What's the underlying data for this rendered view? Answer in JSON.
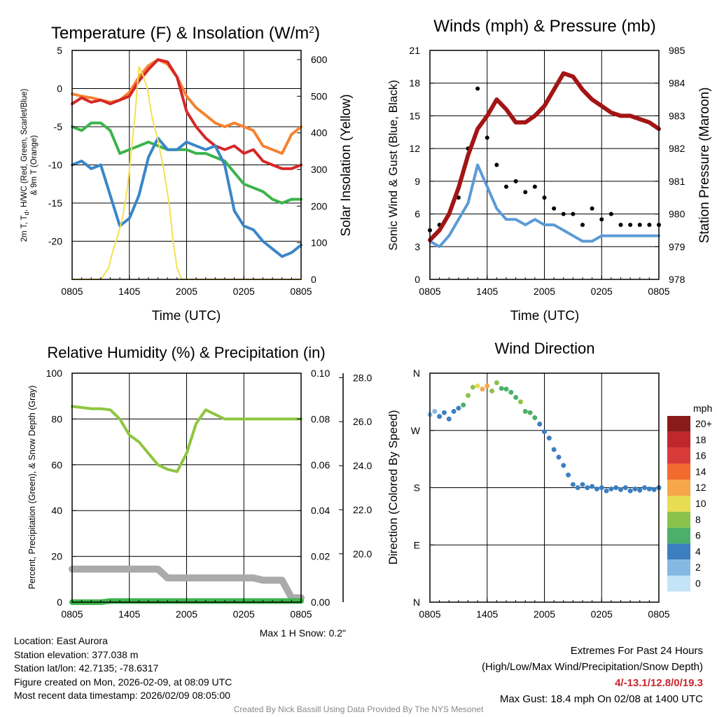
{
  "chart_data": [
    {
      "type": "line",
      "title": "Temperature (F) & Insolation (W/m²)",
      "xlabel": "Time (UTC)",
      "ylabel": "2m T, Td, H/WC (Red, Green, Scarlet/Blue) & 9m T (Orange)",
      "y2label": "Solar Insolation (Yellow)",
      "x_ticks": [
        "0805",
        "1405",
        "2005",
        "0205",
        "0805"
      ],
      "y_ticks": [
        "5",
        "0",
        "-5",
        "-10",
        "-15",
        "-20"
      ],
      "y2_ticks": [
        "600",
        "500",
        "400",
        "300",
        "200",
        "100",
        "0"
      ],
      "ylim": [
        -25,
        5
      ],
      "y2lim": [
        0,
        625
      ],
      "xlim": [
        0,
        24
      ],
      "series": [
        {
          "name": "9m T",
          "color": "#f58231",
          "x": [
            0,
            1,
            2,
            3,
            4,
            5,
            6,
            7,
            8,
            9,
            10,
            11,
            12,
            13,
            14,
            15,
            16,
            17,
            18,
            19,
            20,
            21,
            22,
            23,
            24
          ],
          "values": [
            -0.7,
            -1.0,
            -1.2,
            -1.5,
            -1.8,
            -1.5,
            -0.5,
            1.5,
            3.0,
            3.8,
            3.2,
            1.5,
            -1.0,
            -2.5,
            -3.5,
            -4.5,
            -5.0,
            -4.5,
            -5.0,
            -5.5,
            -7.5,
            -8.0,
            -8.5,
            -6.0,
            -5.0
          ]
        },
        {
          "name": "2m T",
          "color": "#d62728",
          "x": [
            0,
            1,
            2,
            3,
            4,
            5,
            6,
            7,
            8,
            9,
            10,
            11,
            12,
            13,
            14,
            15,
            16,
            17,
            18,
            19,
            20,
            21,
            22,
            23,
            24
          ],
          "values": [
            -2.0,
            -1.2,
            -1.8,
            -1.5,
            -2.0,
            -1.5,
            -1.0,
            1.0,
            2.5,
            3.8,
            3.5,
            1.5,
            -3.0,
            -5.0,
            -6.5,
            -7.5,
            -8.0,
            -7.5,
            -8.5,
            -8.0,
            -9.5,
            -10.0,
            -10.5,
            -10.5,
            -10.0
          ]
        },
        {
          "name": "Td",
          "color": "#3cb44b",
          "x": [
            0,
            1,
            2,
            3,
            4,
            5,
            6,
            7,
            8,
            9,
            10,
            11,
            12,
            13,
            14,
            15,
            16,
            17,
            18,
            19,
            20,
            21,
            22,
            23,
            24
          ],
          "values": [
            -5.0,
            -5.5,
            -4.5,
            -4.5,
            -5.5,
            -8.5,
            -8.0,
            -7.5,
            -7.0,
            -7.5,
            -8.0,
            -8.0,
            -8.0,
            -8.5,
            -8.5,
            -9.0,
            -9.5,
            -11.0,
            -12.5,
            -13.0,
            -13.5,
            -14.5,
            -15.0,
            -14.5,
            -14.5
          ]
        },
        {
          "name": "H/WC",
          "color": "#3a86c8",
          "x": [
            0,
            1,
            2,
            3,
            4,
            5,
            6,
            7,
            8,
            9,
            10,
            11,
            12,
            13,
            14,
            15,
            16,
            17,
            18,
            19,
            20,
            21,
            22,
            23,
            24
          ],
          "values": [
            -10.0,
            -9.5,
            -10.5,
            -10.0,
            -14.0,
            -18.0,
            -17.0,
            -14.0,
            -9.0,
            -6.5,
            -8.0,
            -8.0,
            -7.0,
            -7.5,
            -8.0,
            -7.5,
            -10.0,
            -16.0,
            -18.0,
            -18.5,
            -20.0,
            -21.0,
            -22.0,
            -21.5,
            -20.5
          ]
        },
        {
          "name": "Solar Insolation",
          "color": "#f5e050",
          "axis": "y2",
          "x": [
            0,
            3.0,
            3.8,
            4.3,
            4.8,
            5.3,
            5.8,
            6.2,
            6.6,
            7.0,
            7.4,
            7.9,
            8.4,
            9.0,
            9.6,
            10.2,
            10.6,
            11.0,
            11.5,
            24
          ],
          "values": [
            0,
            0,
            30,
            80,
            120,
            170,
            250,
            350,
            450,
            580,
            560,
            520,
            440,
            380,
            300,
            200,
            100,
            30,
            0,
            0
          ]
        }
      ]
    },
    {
      "type": "line",
      "title": "Winds (mph) & Pressure (mb)",
      "xlabel": "Time (UTC)",
      "ylabel": "Sonic Wind & Gust (Blue, Black)",
      "y2label": "Station Pressure (Maroon)",
      "x_ticks": [
        "0805",
        "1405",
        "2005",
        "0205",
        "0805"
      ],
      "y_ticks": [
        "21",
        "18",
        "15",
        "12",
        "9",
        "6",
        "3",
        "0"
      ],
      "y2_ticks": [
        "985",
        "984",
        "983",
        "982",
        "981",
        "980",
        "979",
        "978"
      ],
      "ylim": [
        0,
        21
      ],
      "y2lim": [
        978,
        985
      ],
      "xlim": [
        0,
        24
      ],
      "series": [
        {
          "name": "Sonic Wind",
          "color": "#5b9bd5",
          "x": [
            0,
            1,
            2,
            3,
            4,
            5,
            6,
            7,
            8,
            9,
            10,
            11,
            12,
            13,
            14,
            15,
            16,
            17,
            18,
            19,
            20,
            21,
            22,
            23,
            24
          ],
          "values": [
            3.5,
            3.0,
            4.0,
            5.5,
            7.0,
            10.5,
            8.5,
            6.5,
            5.5,
            5.5,
            5.0,
            5.5,
            5.0,
            5.0,
            4.5,
            4.0,
            3.5,
            3.5,
            4.0,
            4.0,
            4.0,
            4.0,
            4.0,
            4.0,
            4.0
          ]
        },
        {
          "name": "Gust",
          "color": "#000000",
          "x": [
            0,
            1,
            2,
            3,
            4,
            5,
            6,
            7,
            8,
            9,
            10,
            11,
            12,
            13,
            14,
            15,
            16,
            17,
            18,
            19,
            20,
            21,
            22,
            23,
            24
          ],
          "values": [
            4.5,
            5.0,
            6.0,
            7.5,
            12.0,
            17.5,
            13.0,
            10.5,
            8.5,
            9.0,
            8.0,
            8.5,
            7.5,
            6.5,
            6.0,
            6.0,
            5.0,
            6.5,
            5.5,
            6.0,
            5.0,
            5.0,
            5.0,
            5.0,
            5.0
          ]
        },
        {
          "name": "Station Pressure",
          "color": "#a31515",
          "axis": "y2",
          "x": [
            0,
            1,
            2,
            3,
            4,
            5,
            6,
            7,
            8,
            9,
            10,
            11,
            12,
            13,
            14,
            15,
            16,
            17,
            18,
            19,
            20,
            21,
            22,
            23,
            24
          ],
          "values": [
            979.2,
            979.5,
            980.0,
            980.8,
            981.8,
            982.6,
            983.0,
            983.5,
            983.2,
            982.8,
            982.8,
            983.0,
            983.3,
            983.8,
            984.3,
            984.2,
            983.8,
            983.5,
            983.3,
            983.1,
            983.0,
            983.0,
            982.9,
            982.8,
            982.6
          ]
        }
      ]
    },
    {
      "type": "line",
      "title": "Relative Humidity (%) & Precipitation (in)",
      "ylabel": "Percent, Precipitation (Green), & Snow Depth (Gray)",
      "x_ticks": [
        "0805",
        "1405",
        "2005",
        "0205",
        "0805"
      ],
      "y_ticks": [
        "100",
        "80",
        "60",
        "40",
        "20",
        "0"
      ],
      "y2_ticks": [
        "0.10",
        "0.08",
        "0.06",
        "0.04",
        "0.02",
        "0.00"
      ],
      "y3_ticks": [
        "28.0",
        "26.0",
        "24.0",
        "22.0",
        "20.0"
      ],
      "ylim": [
        0,
        100
      ],
      "y2lim": [
        0,
        0.1
      ],
      "y3lim": [
        17.8,
        28.2
      ],
      "xlim": [
        0,
        24
      ],
      "series": [
        {
          "name": "Relative Humidity",
          "color": "#8dc63f",
          "x": [
            0,
            1,
            2,
            3,
            4,
            5,
            6,
            7,
            8,
            9,
            10,
            11,
            12,
            13,
            14,
            15,
            16,
            17,
            18,
            19,
            20,
            21,
            22,
            23,
            24
          ],
          "values": [
            85.5,
            85,
            84.5,
            84.5,
            84,
            80,
            73,
            70,
            65,
            60,
            58,
            57,
            65,
            78,
            84,
            82,
            80,
            80,
            80,
            80,
            80,
            80,
            80,
            80,
            80
          ]
        },
        {
          "name": "Precipitation",
          "color": "#3cb44b",
          "axis": "y2",
          "x": [
            0,
            1,
            2,
            3,
            4,
            5,
            24
          ],
          "values": [
            0,
            0,
            0,
            0,
            0.0005,
            0.0005,
            0.0005
          ]
        },
        {
          "name": "Snow Depth",
          "color": "#aaaaaa",
          "axis": "y3",
          "x": [
            0,
            1,
            2,
            3,
            4,
            5,
            6,
            7,
            8,
            9,
            10,
            11,
            12,
            13,
            14,
            15,
            16,
            17,
            18,
            19,
            20,
            21,
            22,
            23,
            24
          ],
          "values": [
            19.3,
            19.3,
            19.3,
            19.3,
            19.3,
            19.3,
            19.3,
            19.3,
            19.3,
            19.3,
            18.9,
            18.9,
            18.9,
            18.9,
            18.9,
            18.9,
            18.9,
            18.9,
            18.9,
            18.9,
            18.8,
            18.8,
            18.8,
            18.0,
            18.0
          ]
        }
      ]
    },
    {
      "type": "scatter",
      "title": "Wind Direction",
      "ylabel": "Direction (Colored By Speed)",
      "x_ticks": [
        "0805",
        "1405",
        "2005",
        "0205",
        "0805"
      ],
      "y_ticks": [
        "N",
        "W",
        "S",
        "E",
        "N"
      ],
      "ylim": [
        0,
        360
      ],
      "xlim": [
        0,
        24
      ],
      "points_x": [
        0,
        0.5,
        1,
        1.5,
        2,
        2.5,
        3,
        3.5,
        4,
        4.5,
        5,
        5.5,
        6,
        6.5,
        7,
        7.5,
        8,
        8.5,
        9,
        9.5,
        10,
        10.5,
        11,
        11.5,
        12,
        12.5,
        13,
        13.5,
        14,
        14.5,
        15,
        15.5,
        16,
        16.5,
        17,
        17.5,
        18,
        18.5,
        19,
        19.5,
        20,
        20.5,
        21,
        21.5,
        22,
        22.5,
        23,
        23.5,
        24
      ],
      "points_y": [
        295,
        300,
        292,
        298,
        288,
        300,
        305,
        310,
        325,
        338,
        340,
        335,
        340,
        332,
        345,
        336,
        335,
        330,
        322,
        315,
        300,
        298,
        290,
        280,
        268,
        258,
        240,
        228,
        215,
        200,
        185,
        180,
        185,
        180,
        182,
        178,
        180,
        175,
        178,
        180,
        177,
        180,
        175,
        178,
        176,
        180,
        178,
        177,
        180
      ],
      "points_speed": [
        2,
        2,
        3,
        3,
        3,
        4,
        4,
        6,
        7,
        8,
        10,
        12,
        11,
        8,
        7,
        6,
        5,
        6,
        6,
        7,
        6,
        5,
        5,
        4,
        4,
        4,
        4,
        3,
        3,
        3,
        4,
        3,
        3,
        3,
        4,
        4,
        4,
        4,
        4,
        4,
        4,
        4,
        4,
        4,
        3,
        4,
        4,
        4,
        4
      ],
      "legend": {
        "title": "mph",
        "labels": [
          "20+",
          "18",
          "16",
          "14",
          "12",
          "10",
          "8",
          "6",
          "4",
          "2",
          "0"
        ],
        "colors": [
          "#8b1a1a",
          "#c0272d",
          "#d93a3a",
          "#f26a2e",
          "#f8a64a",
          "#e8dc50",
          "#8bc34a",
          "#4caf6a",
          "#3c7fc0",
          "#85b9e3",
          "#c3e3f7"
        ]
      }
    }
  ],
  "snow_note": "Max 1 H Snow: 0.2\"",
  "info": {
    "location": "Location: East Aurora",
    "elevation": "Station elevation: 377.038 m",
    "latlon": "Station lat/lon: 42.7135; -78.6317",
    "created": "Figure created on Mon, 2026-02-09, at 08:09 UTC",
    "recent": "Most recent data timestamp: 2026/02/09 08:05:00"
  },
  "extremes": {
    "title": "Extremes For Past 24 Hours",
    "subtitle": "(High/Low/Max Wind/Precipitation/Snow Depth)",
    "values": "4/-13.1/12.8/0/19.3",
    "gust": "Max Gust: 18.4 mph On 02/08 at 1400 UTC"
  },
  "credit": "Created By Nick Bassill Using Data Provided By The NYS Mesonet"
}
